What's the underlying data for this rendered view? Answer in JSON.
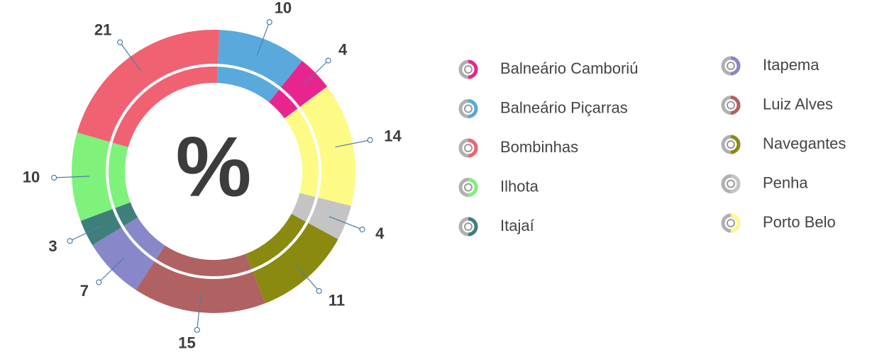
{
  "chart_data": {
    "type": "donut",
    "center_label": "%",
    "categories": [
      "Balneário Camboriú",
      "Balneário Piçarras",
      "Bombinhas",
      "Ilhota",
      "Itajaí",
      "Itapema",
      "Luiz Alves",
      "Navegantes",
      "Penha",
      "Porto Belo"
    ],
    "values": [
      4,
      10,
      21,
      10,
      3,
      7,
      15,
      11,
      4,
      14
    ],
    "colors": [
      "#e8258f",
      "#5aa9dc",
      "#f06272",
      "#7ef27a",
      "#3e7f7b",
      "#8887c9",
      "#b06161",
      "#8a8a10",
      "#c4c4c4",
      "#fdfb86"
    ]
  }
}
